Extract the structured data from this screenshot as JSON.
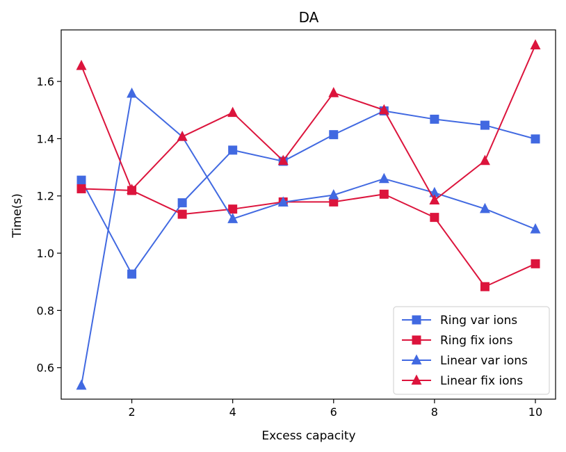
{
  "chart_data": {
    "type": "line",
    "title": "DA",
    "xlabel": "Excess capacity",
    "ylabel": "Time(s)",
    "xlim": [
      0.6,
      10.4
    ],
    "ylim": [
      0.49,
      1.78
    ],
    "xticks": [
      2,
      4,
      6,
      8,
      10
    ],
    "xtick_labels": [
      "2",
      "4",
      "6",
      "8",
      "10"
    ],
    "yticks": [
      0.6,
      0.8,
      1.0,
      1.2,
      1.4,
      1.6
    ],
    "ytick_labels": [
      "0.6",
      "0.8",
      "1.0",
      "1.2",
      "1.4",
      "1.6"
    ],
    "legend_position": "lower-right",
    "x": [
      1,
      2,
      3,
      4,
      5,
      6,
      7,
      8,
      9,
      10
    ],
    "series": [
      {
        "name": "Ring var ions",
        "color": "#4169e1",
        "marker": "square",
        "values": [
          1.255,
          0.927,
          1.176,
          1.36,
          1.321,
          1.414,
          1.497,
          1.468,
          1.447,
          1.399
        ]
      },
      {
        "name": "Ring fix ions",
        "color": "#dc143c",
        "marker": "square",
        "values": [
          1.225,
          1.219,
          1.136,
          1.154,
          1.179,
          1.179,
          1.206,
          1.125,
          0.883,
          0.963
        ]
      },
      {
        "name": "Linear var ions",
        "color": "#4169e1",
        "marker": "triangle",
        "values": [
          0.538,
          1.558,
          1.407,
          1.12,
          1.178,
          1.203,
          1.26,
          1.211,
          1.155,
          1.084
        ]
      },
      {
        "name": "Linear fix ions",
        "color": "#dc143c",
        "marker": "triangle",
        "values": [
          1.655,
          1.222,
          1.407,
          1.491,
          1.323,
          1.56,
          1.5,
          1.185,
          1.323,
          1.727
        ]
      }
    ]
  }
}
